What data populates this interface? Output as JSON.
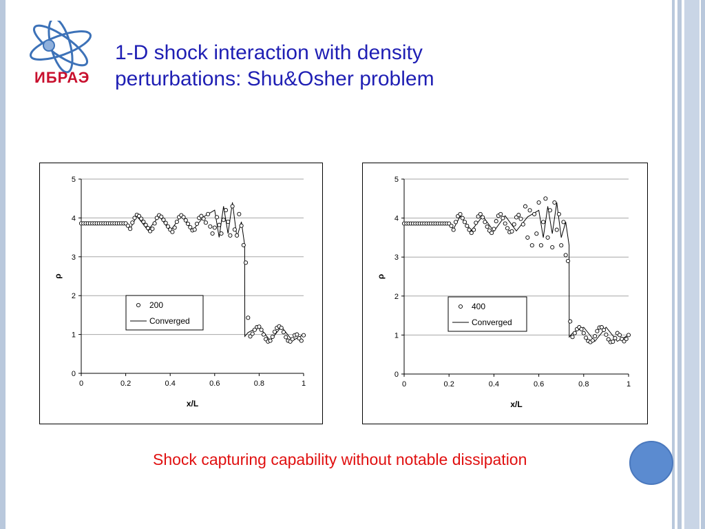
{
  "slide": {
    "title_line1": "1-D shock interaction with density",
    "title_line2": "perturbations: Shu&Osher problem",
    "logo_text": "ИБРАЭ",
    "caption": "Shock capturing capability without notable dissipation",
    "colors": {
      "title": "#1f1fb4",
      "caption": "#e01010",
      "logo_red": "#c8102e",
      "logo_blue": "#3d72b8",
      "accent_dot": "#5b8bd0"
    }
  },
  "chart_data": [
    {
      "type": "scatter",
      "xlabel": "x/L",
      "ylabel": "ρ",
      "xlim": [
        0,
        1
      ],
      "ylim": [
        0,
        5
      ],
      "xticks": [
        "0",
        "0.2",
        "0.4",
        "0.6",
        "0.8",
        "1"
      ],
      "yticks": [
        "0",
        "1",
        "2",
        "3",
        "4",
        "5"
      ],
      "grid": true,
      "legend_position": "center-right",
      "series": [
        {
          "name": "200",
          "marker": "open-circle",
          "x": [
            0.0,
            0.01,
            0.02,
            0.03,
            0.04,
            0.05,
            0.06,
            0.07,
            0.08,
            0.09,
            0.1,
            0.11,
            0.12,
            0.13,
            0.14,
            0.15,
            0.16,
            0.17,
            0.18,
            0.19,
            0.2,
            0.21,
            0.22,
            0.23,
            0.24,
            0.25,
            0.26,
            0.27,
            0.28,
            0.29,
            0.3,
            0.31,
            0.32,
            0.33,
            0.34,
            0.35,
            0.36,
            0.37,
            0.38,
            0.39,
            0.4,
            0.41,
            0.42,
            0.43,
            0.44,
            0.45,
            0.46,
            0.47,
            0.48,
            0.49,
            0.5,
            0.51,
            0.52,
            0.53,
            0.54,
            0.55,
            0.56,
            0.57,
            0.58,
            0.59,
            0.6,
            0.61,
            0.62,
            0.63,
            0.64,
            0.65,
            0.66,
            0.67,
            0.68,
            0.69,
            0.7,
            0.71,
            0.72,
            0.73,
            0.74,
            0.75,
            0.76,
            0.77,
            0.78,
            0.79,
            0.8,
            0.81,
            0.82,
            0.83,
            0.84,
            0.85,
            0.86,
            0.87,
            0.88,
            0.89,
            0.9,
            0.91,
            0.92,
            0.93,
            0.94,
            0.95,
            0.96,
            0.97,
            0.98,
            0.99,
            1.0
          ],
          "y": [
            3.86,
            3.86,
            3.86,
            3.86,
            3.86,
            3.86,
            3.86,
            3.86,
            3.86,
            3.86,
            3.86,
            3.86,
            3.86,
            3.86,
            3.86,
            3.86,
            3.86,
            3.86,
            3.86,
            3.86,
            3.86,
            3.8,
            3.72,
            3.88,
            4.0,
            4.08,
            4.05,
            3.98,
            3.9,
            3.82,
            3.74,
            3.66,
            3.72,
            3.86,
            4.0,
            4.07,
            4.03,
            3.95,
            3.87,
            3.78,
            3.7,
            3.64,
            3.75,
            3.9,
            4.02,
            4.07,
            4.02,
            3.94,
            3.85,
            3.76,
            3.68,
            3.7,
            3.85,
            4.0,
            4.05,
            3.98,
            3.88,
            4.1,
            3.78,
            3.6,
            3.75,
            4.02,
            3.82,
            3.6,
            3.95,
            4.2,
            3.9,
            3.55,
            4.3,
            3.7,
            3.55,
            4.1,
            3.8,
            3.3,
            2.85,
            1.43,
            0.95,
            1.02,
            1.12,
            1.19,
            1.2,
            1.12,
            1.0,
            0.88,
            0.82,
            0.84,
            0.94,
            1.07,
            1.17,
            1.21,
            1.17,
            1.06,
            0.93,
            0.84,
            0.82,
            0.88,
            0.98,
            1.0,
            0.9,
            0.84,
            0.98
          ]
        },
        {
          "name": "Converged",
          "line": "solid",
          "x": [
            0.0,
            0.2,
            0.22,
            0.25,
            0.3,
            0.35,
            0.4,
            0.45,
            0.5,
            0.55,
            0.6,
            0.62,
            0.64,
            0.66,
            0.68,
            0.7,
            0.72,
            0.735,
            0.7355,
            0.75,
            0.8,
            0.85,
            0.9,
            0.95,
            1.0
          ],
          "y": [
            3.86,
            3.86,
            3.72,
            4.05,
            3.68,
            4.05,
            3.66,
            4.06,
            3.67,
            4.03,
            4.2,
            3.5,
            4.3,
            3.6,
            4.4,
            3.5,
            3.9,
            3.3,
            0.95,
            1.05,
            1.2,
            0.84,
            1.2,
            0.84,
            1.0
          ]
        }
      ]
    },
    {
      "type": "scatter",
      "xlabel": "x/L",
      "ylabel": "ρ",
      "xlim": [
        0,
        1
      ],
      "ylim": [
        0,
        5
      ],
      "xticks": [
        "0",
        "0.2",
        "0.4",
        "0.6",
        "0.8",
        "1"
      ],
      "yticks": [
        "0",
        "1",
        "2",
        "3",
        "4",
        "5"
      ],
      "grid": true,
      "legend_position": "center-right",
      "series": [
        {
          "name": "400",
          "marker": "open-circle",
          "x": [
            0.0,
            0.01,
            0.02,
            0.03,
            0.04,
            0.05,
            0.06,
            0.07,
            0.08,
            0.09,
            0.1,
            0.11,
            0.12,
            0.13,
            0.14,
            0.15,
            0.16,
            0.17,
            0.18,
            0.19,
            0.2,
            0.21,
            0.22,
            0.23,
            0.24,
            0.25,
            0.26,
            0.27,
            0.28,
            0.29,
            0.3,
            0.31,
            0.32,
            0.33,
            0.34,
            0.35,
            0.36,
            0.37,
            0.38,
            0.39,
            0.4,
            0.41,
            0.42,
            0.43,
            0.44,
            0.45,
            0.46,
            0.47,
            0.48,
            0.49,
            0.5,
            0.51,
            0.52,
            0.53,
            0.54,
            0.55,
            0.56,
            0.57,
            0.58,
            0.59,
            0.6,
            0.61,
            0.62,
            0.63,
            0.64,
            0.65,
            0.66,
            0.67,
            0.68,
            0.69,
            0.7,
            0.71,
            0.72,
            0.73,
            0.74,
            0.75,
            0.76,
            0.77,
            0.78,
            0.79,
            0.8,
            0.81,
            0.82,
            0.83,
            0.84,
            0.85,
            0.86,
            0.87,
            0.88,
            0.89,
            0.9,
            0.91,
            0.92,
            0.93,
            0.94,
            0.95,
            0.96,
            0.97,
            0.98,
            0.99,
            1.0
          ],
          "y": [
            3.86,
            3.86,
            3.86,
            3.86,
            3.86,
            3.86,
            3.86,
            3.86,
            3.86,
            3.86,
            3.86,
            3.86,
            3.86,
            3.86,
            3.86,
            3.86,
            3.86,
            3.86,
            3.86,
            3.86,
            3.86,
            3.8,
            3.7,
            3.9,
            4.05,
            4.1,
            4.0,
            3.9,
            3.8,
            3.7,
            3.62,
            3.7,
            3.88,
            4.04,
            4.1,
            4.02,
            3.9,
            3.78,
            3.68,
            3.62,
            3.72,
            3.92,
            4.06,
            4.1,
            4.0,
            3.86,
            3.74,
            3.64,
            3.66,
            3.84,
            4.02,
            4.08,
            3.98,
            3.84,
            4.3,
            3.5,
            4.2,
            3.3,
            4.1,
            3.6,
            4.4,
            3.3,
            3.9,
            4.5,
            3.5,
            4.2,
            3.25,
            4.4,
            3.7,
            4.1,
            3.3,
            3.9,
            3.05,
            2.9,
            1.35,
            0.95,
            1.05,
            1.15,
            1.2,
            1.15,
            1.05,
            0.93,
            0.85,
            0.82,
            0.86,
            0.97,
            1.1,
            1.19,
            1.2,
            1.13,
            1.01,
            0.89,
            0.82,
            0.83,
            0.92,
            1.05,
            1.0,
            0.9,
            0.84,
            0.9,
            1.0
          ]
        },
        {
          "name": "Converged",
          "line": "solid",
          "x": [
            0.0,
            0.2,
            0.22,
            0.25,
            0.3,
            0.35,
            0.4,
            0.45,
            0.5,
            0.55,
            0.6,
            0.62,
            0.64,
            0.66,
            0.68,
            0.7,
            0.72,
            0.735,
            0.7355,
            0.75,
            0.8,
            0.85,
            0.9,
            0.95,
            1.0
          ],
          "y": [
            3.86,
            3.86,
            3.72,
            4.05,
            3.68,
            4.05,
            3.66,
            4.06,
            3.67,
            4.03,
            4.2,
            3.5,
            4.3,
            3.6,
            4.4,
            3.5,
            3.9,
            3.3,
            0.95,
            1.05,
            1.2,
            0.84,
            1.2,
            0.84,
            1.0
          ]
        }
      ]
    }
  ]
}
